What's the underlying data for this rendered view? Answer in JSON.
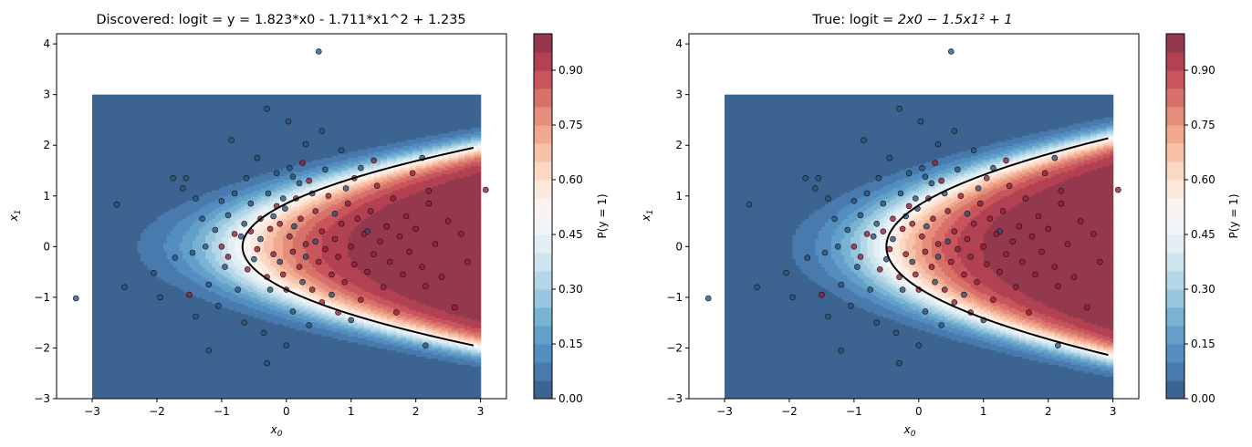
{
  "chart_data": [
    {
      "type": "contour",
      "title": "Discovered: logit = y = 1.823*x0 - 1.711*x1^2 + 1.235",
      "xlabel": "x0",
      "ylabel": "x1",
      "colorbar_label": "P(y = 1)",
      "colormap": "RdBu_r",
      "xlim": [
        -3.55,
        3.4
      ],
      "ylim": [
        -3,
        4.2
      ],
      "x_ticks": [
        "−3",
        "−2",
        "−1",
        "0",
        "1",
        "2",
        "3"
      ],
      "y_ticks": [
        "−3",
        "−2",
        "−1",
        "0",
        "1",
        "2",
        "3",
        "4"
      ],
      "colorbar_ticks": [
        "0.00",
        "0.15",
        "0.30",
        "0.45",
        "0.60",
        "0.75",
        "0.90"
      ],
      "model": {
        "a": 1.823,
        "b": 1.711,
        "c": 1.235
      },
      "grid_range": [
        -3,
        3
      ],
      "decision_boundary": "P = 0.5"
    },
    {
      "type": "contour",
      "title_prefix": "True: logit = ",
      "title_math": "2x0 − 1.5x1² + 1",
      "xlabel": "x0",
      "ylabel": "x1",
      "colorbar_label": "P(y = 1)",
      "colormap": "RdBu_r",
      "xlim": [
        -3.55,
        3.4
      ],
      "ylim": [
        -3,
        4.2
      ],
      "x_ticks": [
        "−3",
        "−2",
        "−1",
        "0",
        "1",
        "2",
        "3"
      ],
      "y_ticks": [
        "−3",
        "−2",
        "−1",
        "0",
        "1",
        "2",
        "3",
        "4"
      ],
      "colorbar_ticks": [
        "0.00",
        "0.15",
        "0.30",
        "0.45",
        "0.60",
        "0.75",
        "0.90"
      ],
      "model": {
        "a": 2,
        "b": 1.5,
        "c": 1
      },
      "grid_range": [
        -3,
        3
      ],
      "decision_boundary": "P = 0.5"
    }
  ],
  "scatter_points": [
    [
      0.5,
      3.85,
      0
    ],
    [
      -3.25,
      -1.02,
      0
    ],
    [
      3.08,
      1.12,
      1
    ],
    [
      -2.62,
      0.83,
      0
    ],
    [
      -2.5,
      -0.8,
      0
    ],
    [
      -2.05,
      -0.52,
      0
    ],
    [
      -1.95,
      -1.0,
      0
    ],
    [
      -1.75,
      1.35,
      0
    ],
    [
      -1.72,
      -0.22,
      0
    ],
    [
      -1.6,
      1.15,
      0
    ],
    [
      -1.55,
      1.35,
      0
    ],
    [
      -1.45,
      -0.12,
      0
    ],
    [
      -1.4,
      0.95,
      0
    ],
    [
      -1.4,
      -1.38,
      0
    ],
    [
      -1.3,
      0.55,
      0
    ],
    [
      -1.25,
      0.0,
      0
    ],
    [
      -1.2,
      -0.75,
      0
    ],
    [
      -1.1,
      0.33,
      0
    ],
    [
      -1.05,
      -1.17,
      0
    ],
    [
      -1.0,
      0.9,
      0
    ],
    [
      -0.95,
      -0.4,
      0
    ],
    [
      -0.9,
      0.62,
      0
    ],
    [
      -0.85,
      2.1,
      0
    ],
    [
      -0.8,
      1.05,
      0
    ],
    [
      -0.75,
      -0.85,
      0
    ],
    [
      -0.7,
      0.2,
      0
    ],
    [
      -0.65,
      -1.5,
      0
    ],
    [
      -0.62,
      1.35,
      0
    ],
    [
      -0.55,
      0.85,
      0
    ],
    [
      -0.5,
      -0.25,
      0
    ],
    [
      -0.45,
      1.75,
      0
    ],
    [
      -0.4,
      0.15,
      0
    ],
    [
      -0.35,
      -1.7,
      0
    ],
    [
      -0.3,
      2.72,
      0
    ],
    [
      -0.28,
      1.05,
      0
    ],
    [
      -0.25,
      -0.85,
      0
    ],
    [
      -0.2,
      0.6,
      0
    ],
    [
      -0.15,
      1.45,
      0
    ],
    [
      -0.1,
      -0.3,
      0
    ],
    [
      -0.05,
      0.95,
      0
    ],
    [
      0.0,
      -1.95,
      0
    ],
    [
      0.03,
      2.47,
      0
    ],
    [
      0.05,
      1.55,
      0
    ],
    [
      0.1,
      -1.28,
      0
    ],
    [
      0.12,
      0.4,
      0
    ],
    [
      0.2,
      1.25,
      0
    ],
    [
      0.25,
      -0.7,
      0
    ],
    [
      0.3,
      2.02,
      0
    ],
    [
      0.35,
      -1.55,
      0
    ],
    [
      0.4,
      1.05,
      0
    ],
    [
      0.45,
      0.1,
      0
    ],
    [
      0.55,
      2.28,
      0
    ],
    [
      0.6,
      1.52,
      0
    ],
    [
      0.7,
      -0.95,
      0
    ],
    [
      0.75,
      0.65,
      0
    ],
    [
      0.85,
      1.9,
      0
    ],
    [
      0.92,
      1.15,
      0
    ],
    [
      1.0,
      -1.45,
      0
    ],
    [
      1.15,
      1.55,
      0
    ],
    [
      1.25,
      0.3,
      0
    ],
    [
      2.1,
      1.75,
      0
    ],
    [
      2.15,
      -1.95,
      0
    ],
    [
      -1.2,
      -2.05,
      0
    ],
    [
      -0.3,
      -2.3,
      0
    ],
    [
      0.1,
      1.38,
      0
    ],
    [
      -0.65,
      0.45,
      0
    ],
    [
      0.3,
      -0.2,
      0
    ],
    [
      -0.02,
      0.75,
      0
    ],
    [
      -1.5,
      -0.95,
      1
    ],
    [
      -1.0,
      0.0,
      1
    ],
    [
      -0.9,
      -0.2,
      1
    ],
    [
      -0.8,
      0.25,
      1
    ],
    [
      -0.6,
      -0.45,
      1
    ],
    [
      -0.55,
      0.3,
      1
    ],
    [
      -0.45,
      -0.05,
      1
    ],
    [
      -0.4,
      0.55,
      1
    ],
    [
      -0.3,
      -0.6,
      1
    ],
    [
      -0.25,
      0.35,
      1
    ],
    [
      -0.2,
      -0.15,
      1
    ],
    [
      -0.15,
      0.8,
      1
    ],
    [
      -0.05,
      -0.55,
      1
    ],
    [
      0.05,
      0.2,
      1
    ],
    [
      0.1,
      -0.1,
      1
    ],
    [
      0.15,
      0.95,
      1
    ],
    [
      0.2,
      -0.4,
      1
    ],
    [
      0.22,
      0.55,
      1
    ],
    [
      0.3,
      0.05,
      1
    ],
    [
      0.35,
      1.3,
      1
    ],
    [
      0.4,
      -0.85,
      1
    ],
    [
      0.45,
      0.7,
      1
    ],
    [
      0.5,
      -0.3,
      1
    ],
    [
      0.55,
      0.3,
      1
    ],
    [
      0.6,
      -0.05,
      1
    ],
    [
      0.65,
      1.0,
      1
    ],
    [
      0.7,
      -0.55,
      1
    ],
    [
      0.75,
      0.15,
      1
    ],
    [
      0.8,
      -0.2,
      1
    ],
    [
      0.85,
      0.45,
      1
    ],
    [
      0.9,
      -0.7,
      1
    ],
    [
      0.95,
      0.85,
      1
    ],
    [
      1.0,
      0.0,
      1
    ],
    [
      1.05,
      -0.35,
      1
    ],
    [
      1.1,
      0.55,
      1
    ],
    [
      1.15,
      -1.05,
      1
    ],
    [
      1.2,
      0.25,
      1
    ],
    [
      1.25,
      -0.5,
      1
    ],
    [
      1.3,
      0.7,
      1
    ],
    [
      1.35,
      -0.15,
      1
    ],
    [
      1.4,
      1.2,
      1
    ],
    [
      1.45,
      0.1,
      1
    ],
    [
      1.5,
      -0.8,
      1
    ],
    [
      1.55,
      0.4,
      1
    ],
    [
      1.6,
      -0.3,
      1
    ],
    [
      1.65,
      0.95,
      1
    ],
    [
      1.7,
      -1.3,
      1
    ],
    [
      1.75,
      0.2,
      1
    ],
    [
      1.8,
      -0.55,
      1
    ],
    [
      1.85,
      0.6,
      1
    ],
    [
      1.9,
      -0.1,
      1
    ],
    [
      1.95,
      1.45,
      1
    ],
    [
      2.0,
      0.35,
      1
    ],
    [
      2.1,
      -0.4,
      1
    ],
    [
      2.15,
      -0.78,
      1
    ],
    [
      2.2,
      0.85,
      1
    ],
    [
      2.3,
      0.05,
      1
    ],
    [
      2.4,
      -0.6,
      1
    ],
    [
      2.5,
      0.5,
      1
    ],
    [
      2.6,
      -1.2,
      1
    ],
    [
      2.7,
      0.25,
      1
    ],
    [
      2.8,
      -0.3,
      1
    ],
    [
      0.55,
      -1.1,
      1
    ],
    [
      0.25,
      1.65,
      1
    ],
    [
      -0.1,
      0.45,
      1
    ],
    [
      1.05,
      1.35,
      1
    ],
    [
      0.8,
      -1.3,
      1
    ],
    [
      1.35,
      1.7,
      1
    ],
    [
      0.0,
      -0.85,
      1
    ],
    [
      2.2,
      1.1,
      1
    ]
  ]
}
